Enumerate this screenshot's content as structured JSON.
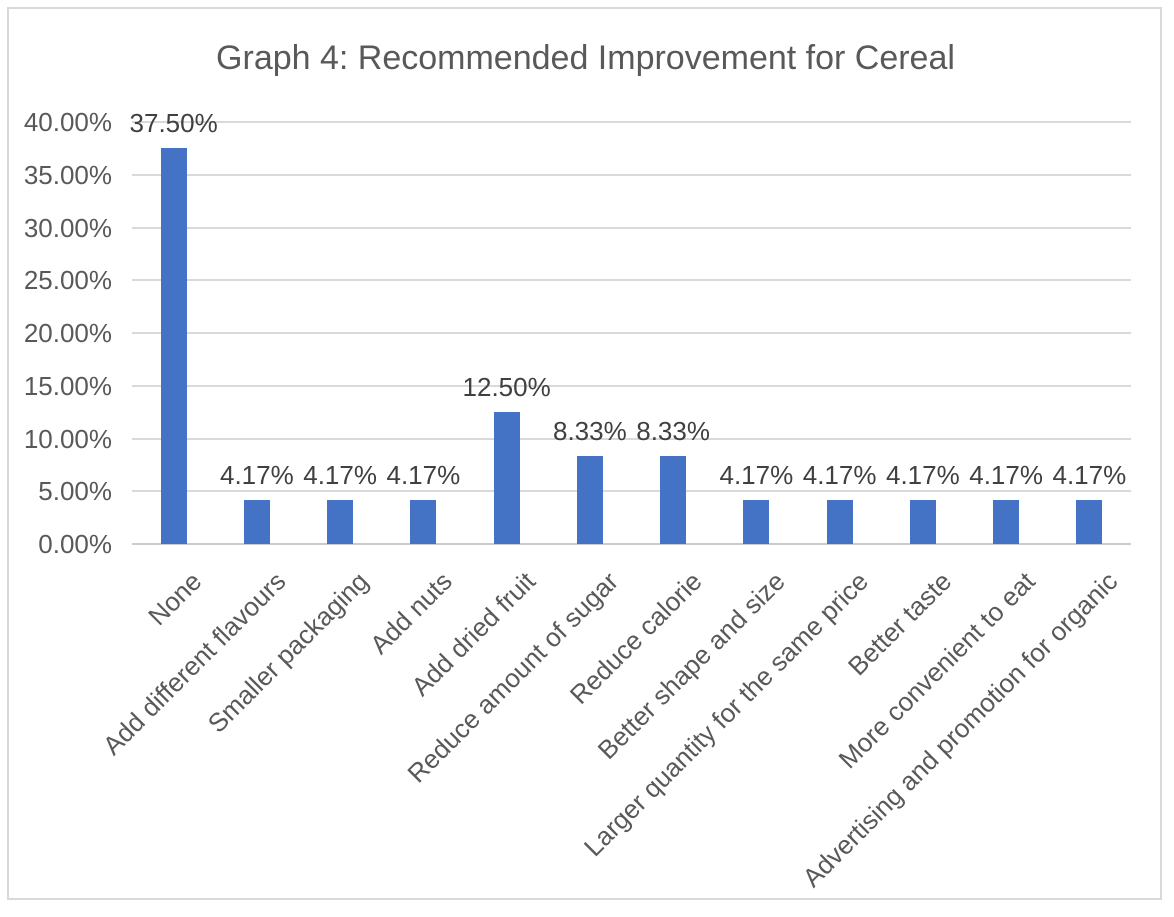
{
  "chart_data": {
    "type": "bar",
    "title": "Graph 4: Recommended Improvement for Cereal",
    "categories": [
      "None",
      "Add different flavours",
      "Smaller packaging",
      "Add nuts",
      "Add dried fruit",
      "Reduce amount of sugar",
      "Reduce calorie",
      "Better shape and size",
      "Larger quantity for the same price",
      "Better taste",
      "More convenient to eat",
      "Advertising and promotion for organic"
    ],
    "values": [
      37.5,
      4.17,
      4.17,
      4.17,
      12.5,
      8.33,
      8.33,
      4.17,
      4.17,
      4.17,
      4.17,
      4.17
    ],
    "value_labels": [
      "37.50%",
      "4.17%",
      "4.17%",
      "4.17%",
      "12.50%",
      "8.33%",
      "8.33%",
      "4.17%",
      "4.17%",
      "4.17%",
      "4.17%",
      "4.17%"
    ],
    "y_tick_values": [
      0,
      5,
      10,
      15,
      20,
      25,
      30,
      35,
      40
    ],
    "y_tick_labels": [
      "0.00%",
      "5.00%",
      "10.00%",
      "15.00%",
      "20.00%",
      "25.00%",
      "30.00%",
      "35.00%",
      "40.00%"
    ],
    "ylim": [
      0,
      40
    ],
    "xlabel": "",
    "ylabel": "",
    "grid": true,
    "legend": "none",
    "colors": {
      "bar": "#4472C4",
      "gridline": "#D9D9D9",
      "axis_text": "#595959",
      "data_label_text": "#404040",
      "title_text": "#595959",
      "frame_border": "#D9D9D9",
      "background": "#ffffff"
    }
  }
}
